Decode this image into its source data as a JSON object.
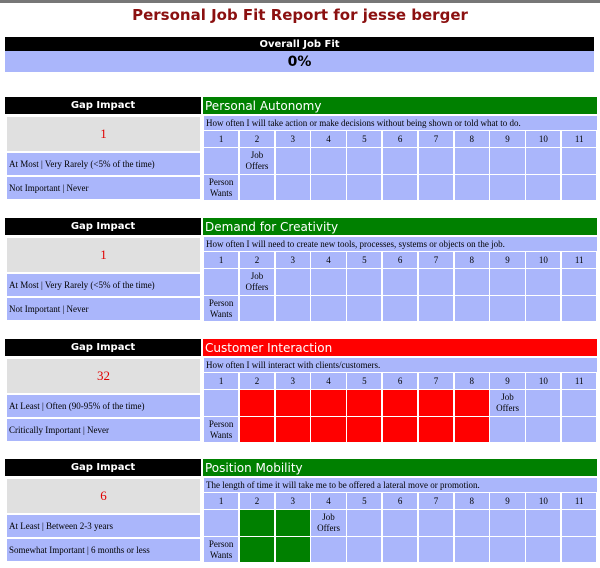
{
  "title": "Personal Job Fit Report for jesse berger",
  "overall": {
    "label": "Overall Job Fit",
    "value": "0%"
  },
  "sections": [
    {
      "gap_label": "Gap Impact",
      "gap_value": "1",
      "job_line": "At Most | Very Rarely (<5% of the time)",
      "person_line": "Not Important | Never",
      "title": "Personal Autonomy",
      "title_color": "#008000",
      "question": "How often I will take action or make decisions without being shown or told what to do.",
      "scale": [
        1,
        2,
        3,
        4,
        5,
        6,
        7,
        8,
        9,
        10,
        11
      ],
      "job_label": "Job Offers",
      "job_column": 2,
      "person_label": "Person Wants",
      "person_column": 1
    },
    {
      "gap_label": "Gap Impact",
      "gap_value": "1",
      "job_line": "At Most | Very Rarely (<5% of the time)",
      "person_line": "Not Important | Never",
      "title": "Demand for Creativity",
      "title_color": "#008000",
      "question": "How often I will need to create new tools, processes, systems or objects on the job.",
      "scale": [
        1,
        2,
        3,
        4,
        5,
        6,
        7,
        8,
        9,
        10,
        11
      ],
      "job_label": "Job Offers",
      "job_column": 2,
      "person_label": "Person Wants",
      "person_column": 1
    },
    {
      "gap_label": "Gap Impact",
      "gap_value": "32",
      "job_line": "At Least | Often (90-95% of the time)",
      "person_line": "Critically Important | Never",
      "title": "Customer Interaction",
      "title_color": "#ff0000",
      "question": "How often I will interact with clients/customers.",
      "scale": [
        1,
        2,
        3,
        4,
        5,
        6,
        7,
        8,
        9,
        10,
        11
      ],
      "job_label": "Job Offers",
      "job_column": 9,
      "person_label": "Person Wants",
      "person_column": 1,
      "fill_color": "#ff0000",
      "fill_columns": [
        2,
        3,
        4,
        5,
        6,
        7,
        8
      ]
    },
    {
      "gap_label": "Gap Impact",
      "gap_value": "6",
      "job_line": "At Least | Between 2-3 years",
      "person_line": "Somewhat Important | 6 months or less",
      "title": "Position Mobility",
      "title_color": "#008000",
      "question": "The length of time it will take me to be offered a lateral move or promotion.",
      "scale": [
        1,
        2,
        3,
        4,
        5,
        6,
        7,
        8,
        9,
        10,
        11
      ],
      "job_label": "Job Offers",
      "job_column": 4,
      "person_label": "Person Wants",
      "person_column": 1,
      "fill_color": "#008000",
      "fill_columns": [
        2,
        3
      ]
    }
  ]
}
